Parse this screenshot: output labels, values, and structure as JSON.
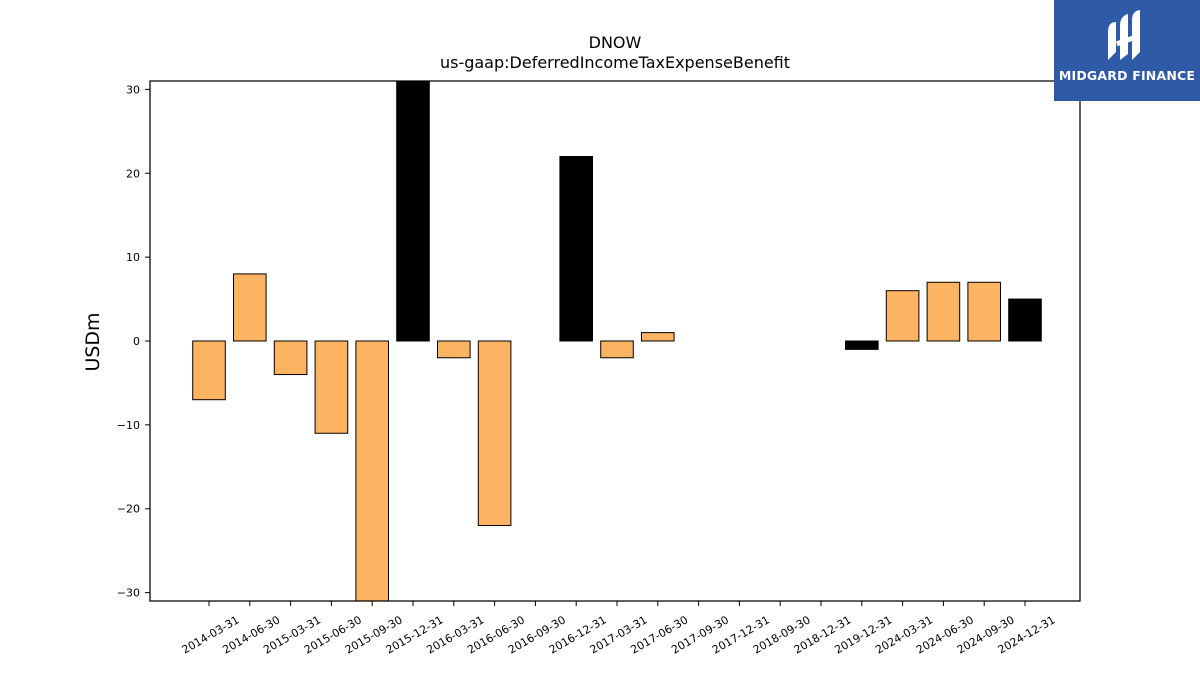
{
  "chart_data": {
    "type": "bar",
    "title": "DNOW",
    "subtitle": "us-gaap:DeferredIncomeTaxExpenseBenefit",
    "xlabel": "",
    "ylabel": "USDm",
    "ylim": [
      -31,
      31
    ],
    "yticks": [
      30,
      20,
      10,
      0,
      -10,
      -20,
      -30
    ],
    "ytick_labels": [
      "30",
      "20",
      "10",
      "0",
      "−10",
      "−20",
      "−30"
    ],
    "categories": [
      "2014-03-31",
      "2014-06-30",
      "2015-03-31",
      "2015-06-30",
      "2015-09-30",
      "2015-12-31",
      "2016-03-31",
      "2016-06-30",
      "2016-09-30",
      "2016-12-31",
      "2017-03-31",
      "2017-06-30",
      "2017-09-30",
      "2017-12-31",
      "2018-09-30",
      "2018-12-31",
      "2019-12-31",
      "2024-03-31",
      "2024-06-30",
      "2024-09-30",
      "2024-12-31"
    ],
    "values": [
      -7,
      8,
      -4,
      -11,
      -31,
      31,
      -2,
      -22,
      0,
      22,
      -2,
      1,
      0,
      0,
      0,
      0,
      -1,
      6,
      7,
      7,
      5
    ],
    "bar_colors": [
      "#fdb462",
      "#fdb462",
      "#fdb462",
      "#fdb462",
      "#fdb462",
      "#000000",
      "#fdb462",
      "#fdb462",
      "#fdb462",
      "#000000",
      "#fdb462",
      "#fdb462",
      "#fdb462",
      "#fdb462",
      "#fdb462",
      "#fdb462",
      "#000000",
      "#fdb462",
      "#fdb462",
      "#fdb462",
      "#000000"
    ],
    "grid": false,
    "legend": "none"
  },
  "logo": {
    "text": "MIDGARD FINANCE",
    "background": "#2f5aa8",
    "icon": "midgard-logo-icon"
  }
}
